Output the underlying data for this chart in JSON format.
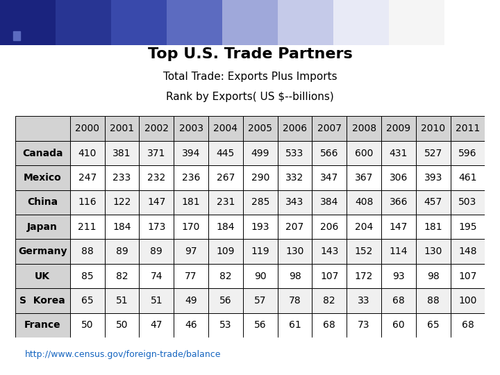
{
  "title": "Top U.S. Trade Partners",
  "subtitle1": "Total Trade: Exports Plus Imports",
  "subtitle2": "Rank by Exports( US $--billions)",
  "columns": [
    "",
    "2000",
    "2001",
    "2002",
    "2003",
    "2004",
    "2005",
    "2006",
    "2007",
    "2008",
    "2009",
    "2010",
    "2011"
  ],
  "rows": [
    [
      "Canada",
      "410",
      "381",
      "371",
      "394",
      "445",
      "499",
      "533",
      "566",
      "600",
      "431",
      "527",
      "596"
    ],
    [
      "Mexico",
      "247",
      "233",
      "232",
      "236",
      "267",
      "290",
      "332",
      "347",
      "367",
      "306",
      "393",
      "461"
    ],
    [
      "China",
      "116",
      "122",
      "147",
      "181",
      "231",
      "285",
      "343",
      "384",
      "408",
      "366",
      "457",
      "503"
    ],
    [
      "Japan",
      "211",
      "184",
      "173",
      "170",
      "184",
      "193",
      "207",
      "206",
      "204",
      "147",
      "181",
      "195"
    ],
    [
      "Germany",
      "88",
      "89",
      "89",
      "97",
      "109",
      "119",
      "130",
      "143",
      "152",
      "114",
      "130",
      "148"
    ],
    [
      "UK",
      "85",
      "82",
      "74",
      "77",
      "82",
      "90",
      "98",
      "107",
      "172",
      "93",
      "98",
      "107"
    ],
    [
      "S  Korea",
      "65",
      "51",
      "51",
      "49",
      "56",
      "57",
      "78",
      "82",
      "33",
      "68",
      "88",
      "100"
    ],
    [
      "France",
      "50",
      "50",
      "47",
      "46",
      "53",
      "56",
      "61",
      "68",
      "73",
      "60",
      "65",
      "68"
    ]
  ],
  "header_bg": "#d3d3d3",
  "row_bg_odd": "#f0f0f0",
  "row_bg_even": "#ffffff",
  "country_bg": "#d3d3d3",
  "border_color": "#000000",
  "url": "http://www.census.gov/foreign-trade/balance",
  "title_fontsize": 16,
  "subtitle_fontsize": 11,
  "cell_fontsize": 10,
  "header_fontsize": 10,
  "country_fontsize": 10,
  "url_fontsize": 9,
  "bg_color": "#ffffff",
  "grad_colors": [
    "#1a237e",
    "#283593",
    "#3949ab",
    "#5c6bc0",
    "#9fa8da",
    "#c5cae9",
    "#e8eaf6",
    "#f5f5f5",
    "#ffffff"
  ]
}
